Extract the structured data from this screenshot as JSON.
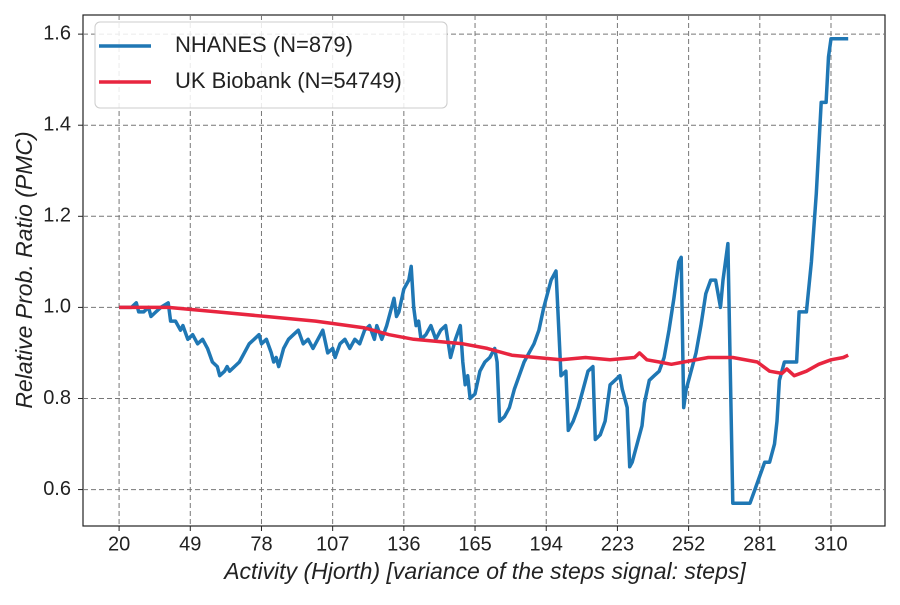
{
  "chart_data": {
    "type": "line",
    "xlabel": "Activity (Hjorth) [variance of the steps signal: steps]",
    "ylabel": "Relative Prob. Ratio (PMC)",
    "xlim": [
      5.3,
      332
    ],
    "ylim": [
      0.52,
      1.642
    ],
    "xticks": [
      20,
      49,
      78,
      107,
      136,
      165,
      194,
      223,
      252,
      281,
      310
    ],
    "yticks": [
      0.6,
      0.8,
      {
        "value": 1,
        "label": "1.0"
      },
      1.2,
      1.4,
      1.6
    ],
    "grid": true,
    "legend": "upper left",
    "series": [
      {
        "name": "NHANES (N=879)",
        "color": "#1f77b4",
        "x": [
          20,
          25,
          27,
          28,
          30,
          32,
          33,
          35,
          37,
          40,
          41,
          43,
          45,
          46,
          48,
          50,
          52,
          54,
          56,
          58,
          60,
          61,
          63,
          64,
          65,
          67,
          69,
          71,
          73,
          75,
          77,
          78,
          80,
          82,
          83,
          84,
          85,
          87,
          89,
          91,
          93,
          95,
          97,
          99,
          101,
          103,
          105,
          107,
          108,
          110,
          112,
          114,
          116,
          118,
          120,
          122,
          124,
          125,
          127,
          129,
          131,
          132,
          133,
          134,
          136,
          138,
          139,
          140,
          141,
          142,
          143,
          145,
          147,
          149,
          151,
          153,
          155,
          157,
          159,
          160,
          161,
          162,
          163,
          165,
          167,
          169,
          171,
          173,
          174,
          175,
          177,
          179,
          181,
          183,
          185,
          187,
          189,
          191,
          193,
          196,
          198,
          200,
          202,
          203,
          205,
          207,
          209,
          211,
          213,
          214,
          216,
          218,
          220,
          222,
          224,
          225,
          226,
          227,
          228,
          229,
          231,
          233,
          234,
          236,
          238,
          240,
          242,
          244,
          246,
          248,
          249,
          250,
          251,
          253,
          255,
          257,
          259,
          261,
          263,
          265,
          266,
          268,
          270,
          277,
          279,
          281,
          283,
          285,
          287,
          288,
          289,
          291,
          296,
          297,
          300,
          302,
          304,
          306,
          308,
          309,
          310,
          317
        ],
        "values": [
          1.0,
          1.0,
          1.01,
          0.99,
          0.99,
          1.0,
          0.98,
          0.99,
          1.0,
          1.01,
          0.97,
          0.97,
          0.95,
          0.96,
          0.93,
          0.94,
          0.92,
          0.93,
          0.91,
          0.88,
          0.87,
          0.85,
          0.86,
          0.87,
          0.86,
          0.87,
          0.88,
          0.9,
          0.92,
          0.93,
          0.94,
          0.92,
          0.93,
          0.9,
          0.88,
          0.89,
          0.87,
          0.91,
          0.93,
          0.94,
          0.95,
          0.92,
          0.93,
          0.91,
          0.93,
          0.95,
          0.9,
          0.91,
          0.89,
          0.92,
          0.93,
          0.91,
          0.93,
          0.92,
          0.95,
          0.96,
          0.93,
          0.96,
          0.93,
          0.96,
          1.0,
          1.02,
          0.98,
          0.99,
          1.04,
          1.06,
          1.09,
          1.0,
          0.96,
          0.97,
          0.93,
          0.94,
          0.96,
          0.93,
          0.95,
          0.96,
          0.89,
          0.93,
          0.96,
          0.88,
          0.83,
          0.85,
          0.8,
          0.81,
          0.86,
          0.88,
          0.89,
          0.91,
          0.88,
          0.75,
          0.76,
          0.78,
          0.82,
          0.85,
          0.88,
          0.9,
          0.92,
          0.95,
          1.0,
          1.06,
          1.08,
          0.85,
          0.86,
          0.73,
          0.75,
          0.78,
          0.82,
          0.86,
          0.87,
          0.71,
          0.72,
          0.75,
          0.83,
          0.84,
          0.85,
          0.82,
          0.8,
          0.78,
          0.65,
          0.66,
          0.7,
          0.74,
          0.79,
          0.84,
          0.85,
          0.86,
          0.89,
          0.95,
          1.02,
          1.1,
          1.11,
          0.78,
          0.82,
          0.86,
          0.9,
          0.96,
          1.03,
          1.06,
          1.06,
          1.0,
          1.06,
          1.14,
          0.57,
          0.57,
          0.6,
          0.63,
          0.66,
          0.66,
          0.7,
          0.75,
          0.84,
          0.88,
          0.88,
          0.99,
          0.99,
          1.1,
          1.25,
          1.45,
          1.45,
          1.55,
          1.59,
          1.59
        ]
      },
      {
        "name": "UK Biobank (N=54749)",
        "color": "#e8253f",
        "x": [
          20,
          40,
          60,
          80,
          100,
          120,
          130,
          140,
          150,
          160,
          170,
          180,
          190,
          200,
          210,
          220,
          230,
          232,
          235,
          240,
          245,
          250,
          260,
          270,
          280,
          285,
          290,
          292,
          295,
          300,
          305,
          310,
          315,
          317
        ],
        "values": [
          1.0,
          1.0,
          0.99,
          0.98,
          0.97,
          0.955,
          0.94,
          0.93,
          0.925,
          0.92,
          0.91,
          0.895,
          0.89,
          0.885,
          0.89,
          0.885,
          0.89,
          0.9,
          0.885,
          0.88,
          0.875,
          0.88,
          0.89,
          0.89,
          0.88,
          0.86,
          0.855,
          0.865,
          0.85,
          0.86,
          0.875,
          0.885,
          0.89,
          0.895
        ]
      }
    ]
  }
}
